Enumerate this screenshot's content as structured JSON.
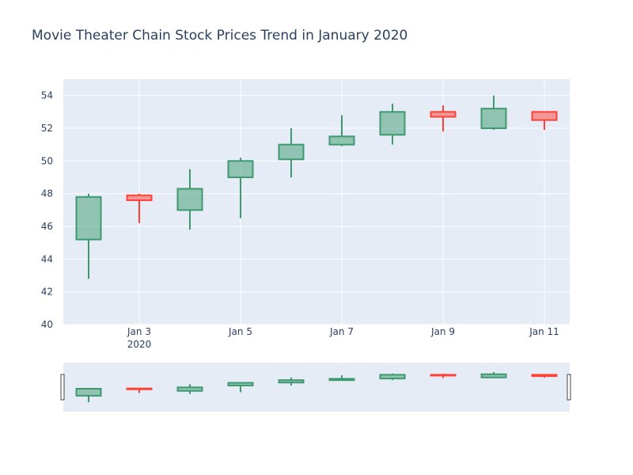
{
  "chart_data": {
    "type": "candlestick",
    "title": "Movie Theater Chain Stock Prices Trend in January 2020",
    "year_label": "2020",
    "xlabel": "",
    "ylabel": "",
    "dates": [
      "2020-01-02",
      "2020-01-03",
      "2020-01-04",
      "2020-01-05",
      "2020-01-06",
      "2020-01-07",
      "2020-01-08",
      "2020-01-09",
      "2020-01-10",
      "2020-01-11"
    ],
    "open": [
      45.2,
      47.9,
      47.0,
      49.0,
      50.1,
      51.0,
      51.6,
      53.0,
      52.0,
      53.0
    ],
    "high": [
      48.0,
      48.0,
      49.5,
      50.2,
      52.0,
      52.8,
      53.5,
      53.4,
      54.0,
      53.0
    ],
    "low": [
      42.8,
      46.2,
      45.8,
      46.5,
      49.0,
      50.9,
      51.0,
      51.8,
      51.9,
      51.9
    ],
    "close": [
      47.8,
      47.6,
      48.3,
      50.0,
      51.0,
      51.5,
      53.0,
      52.7,
      53.2,
      52.5
    ],
    "ylim": [
      40,
      55
    ],
    "yticks": [
      40,
      42,
      44,
      46,
      48,
      50,
      52,
      54
    ],
    "xticks": [
      {
        "date": "2020-01-03",
        "label": "Jan 3"
      },
      {
        "date": "2020-01-05",
        "label": "Jan 5"
      },
      {
        "date": "2020-01-07",
        "label": "Jan 7"
      },
      {
        "date": "2020-01-09",
        "label": "Jan 9"
      },
      {
        "date": "2020-01-11",
        "label": "Jan 11"
      }
    ],
    "grid": true,
    "rangeslider": true,
    "colors": {
      "increasing": "#3d9970",
      "increasing_fill": "rgba(61,153,112,0.5)",
      "decreasing": "#ff4136",
      "decreasing_fill": "rgba(255,65,54,0.5)",
      "plot_bg": "#e5ecf6",
      "grid": "#ffffff",
      "text": "#2a3f5f"
    }
  }
}
